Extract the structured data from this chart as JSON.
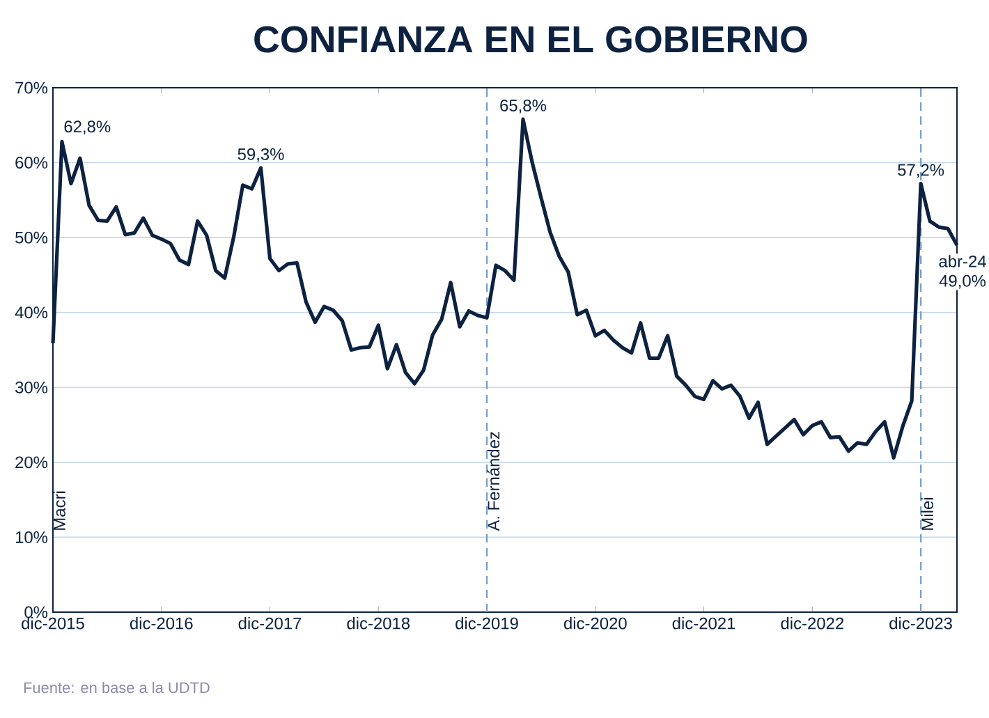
{
  "chart_data": {
    "type": "line",
    "title": "CONFIANZA EN EL GOBIERNO",
    "x": [
      "2015-12",
      "2016-01",
      "2016-02",
      "2016-03",
      "2016-04",
      "2016-05",
      "2016-06",
      "2016-07",
      "2016-08",
      "2016-09",
      "2016-10",
      "2016-11",
      "2016-12",
      "2017-01",
      "2017-02",
      "2017-03",
      "2017-04",
      "2017-05",
      "2017-06",
      "2017-07",
      "2017-08",
      "2017-09",
      "2017-10",
      "2017-11",
      "2017-12",
      "2018-01",
      "2018-02",
      "2018-03",
      "2018-04",
      "2018-05",
      "2018-06",
      "2018-07",
      "2018-08",
      "2018-09",
      "2018-10",
      "2018-11",
      "2018-12",
      "2019-01",
      "2019-02",
      "2019-03",
      "2019-04",
      "2019-05",
      "2019-06",
      "2019-07",
      "2019-08",
      "2019-09",
      "2019-10",
      "2019-11",
      "2019-12",
      "2020-01",
      "2020-02",
      "2020-03",
      "2020-04",
      "2020-05",
      "2020-06",
      "2020-07",
      "2020-08",
      "2020-09",
      "2020-10",
      "2020-11",
      "2020-12",
      "2021-01",
      "2021-02",
      "2021-03",
      "2021-04",
      "2021-05",
      "2021-06",
      "2021-07",
      "2021-08",
      "2021-09",
      "2021-10",
      "2021-11",
      "2021-12",
      "2022-01",
      "2022-02",
      "2022-03",
      "2022-04",
      "2022-05",
      "2022-06",
      "2022-07",
      "2022-08",
      "2022-09",
      "2022-10",
      "2022-11",
      "2022-12",
      "2023-01",
      "2023-02",
      "2023-03",
      "2023-04",
      "2023-05",
      "2023-06",
      "2023-07",
      "2023-08",
      "2023-09",
      "2023-10",
      "2023-11",
      "2023-12",
      "2024-01",
      "2024-02",
      "2024-03",
      "2024-04"
    ],
    "series": [
      {
        "color": "#0d2240",
        "values": [
          35.9,
          62.8,
          57.2,
          60.6,
          54.3,
          52.3,
          52.2,
          54.1,
          50.4,
          50.6,
          52.6,
          50.3,
          49.8,
          49.2,
          47.0,
          46.4,
          52.2,
          50.3,
          45.6,
          44.6,
          50.1,
          57.0,
          56.5,
          59.3,
          47.2,
          45.6,
          46.5,
          46.6,
          41.4,
          38.7,
          40.8,
          40.3,
          38.9,
          35.0,
          35.3,
          35.4,
          38.3,
          32.5,
          35.7,
          32.0,
          30.5,
          32.3,
          37.0,
          39.1,
          44.0,
          38.1,
          40.2,
          39.6,
          39.3,
          46.3,
          45.6,
          44.3,
          65.8,
          60.1,
          55.3,
          50.7,
          47.5,
          45.4,
          39.7,
          40.3,
          36.9,
          37.6,
          36.3,
          35.3,
          34.6,
          38.6,
          33.9,
          33.9,
          36.9,
          31.5,
          30.3,
          28.8,
          28.4,
          30.9,
          29.8,
          30.3,
          28.8,
          25.9,
          28.0,
          22.4,
          23.5,
          24.6,
          25.7,
          23.7,
          24.9,
          25.4,
          23.3,
          23.4,
          21.5,
          22.6,
          22.4,
          24.1,
          25.4,
          20.6,
          24.8,
          28.2,
          57.2,
          52.2,
          51.4,
          51.2,
          49.0
        ]
      }
    ],
    "xlim": [
      "2015-12",
      "2024-04"
    ],
    "xticks": [
      {
        "value": "2015-12",
        "label": "dic-2015"
      },
      {
        "value": "2016-12",
        "label": "dic-2016"
      },
      {
        "value": "2017-12",
        "label": "dic-2017"
      },
      {
        "value": "2018-12",
        "label": "dic-2018"
      },
      {
        "value": "2019-12",
        "label": "dic-2019"
      },
      {
        "value": "2020-12",
        "label": "dic-2020"
      },
      {
        "value": "2021-12",
        "label": "dic-2021"
      },
      {
        "value": "2022-12",
        "label": "dic-2022"
      },
      {
        "value": "2023-12",
        "label": "dic-2023"
      }
    ],
    "ylim": [
      0,
      70
    ],
    "yticks": [
      {
        "value": 0,
        "label": "0%"
      },
      {
        "value": 10,
        "label": "10%"
      },
      {
        "value": 20,
        "label": "20%"
      },
      {
        "value": 30,
        "label": "30%"
      },
      {
        "value": 40,
        "label": "40%"
      },
      {
        "value": 50,
        "label": "50%"
      },
      {
        "value": 60,
        "label": "60%"
      },
      {
        "value": 70,
        "label": "70%"
      }
    ],
    "grid": "y",
    "marker": "none",
    "line_style": "solid",
    "ref_lines": [
      {
        "axis": "x",
        "value": "2019-12",
        "label": "A. Fernández",
        "color": "#7ba1c9",
        "line_style": "dashed"
      },
      {
        "axis": "x",
        "value": "2023-12",
        "label": "Milei",
        "color": "#7ba1c9",
        "line_style": "dashed"
      }
    ],
    "annotations": [
      "Macri",
      {
        "text": "62,8%",
        "x": "2016-01",
        "y": 62.8
      },
      {
        "text": "59,3%",
        "x": "2017-11",
        "y": 59.3
      },
      {
        "text": "65,8%",
        "x": "2020-04",
        "y": 65.8
      },
      {
        "text": "57,2%",
        "x": "2023-12",
        "y": 57.2
      },
      {
        "text": "abr-24",
        "x": "2024-04",
        "y": 49.0
      },
      {
        "text": "49,0%",
        "x": "2024-04",
        "y": 49.0
      },
      "Fuente: en base a la UDTD"
    ]
  }
}
